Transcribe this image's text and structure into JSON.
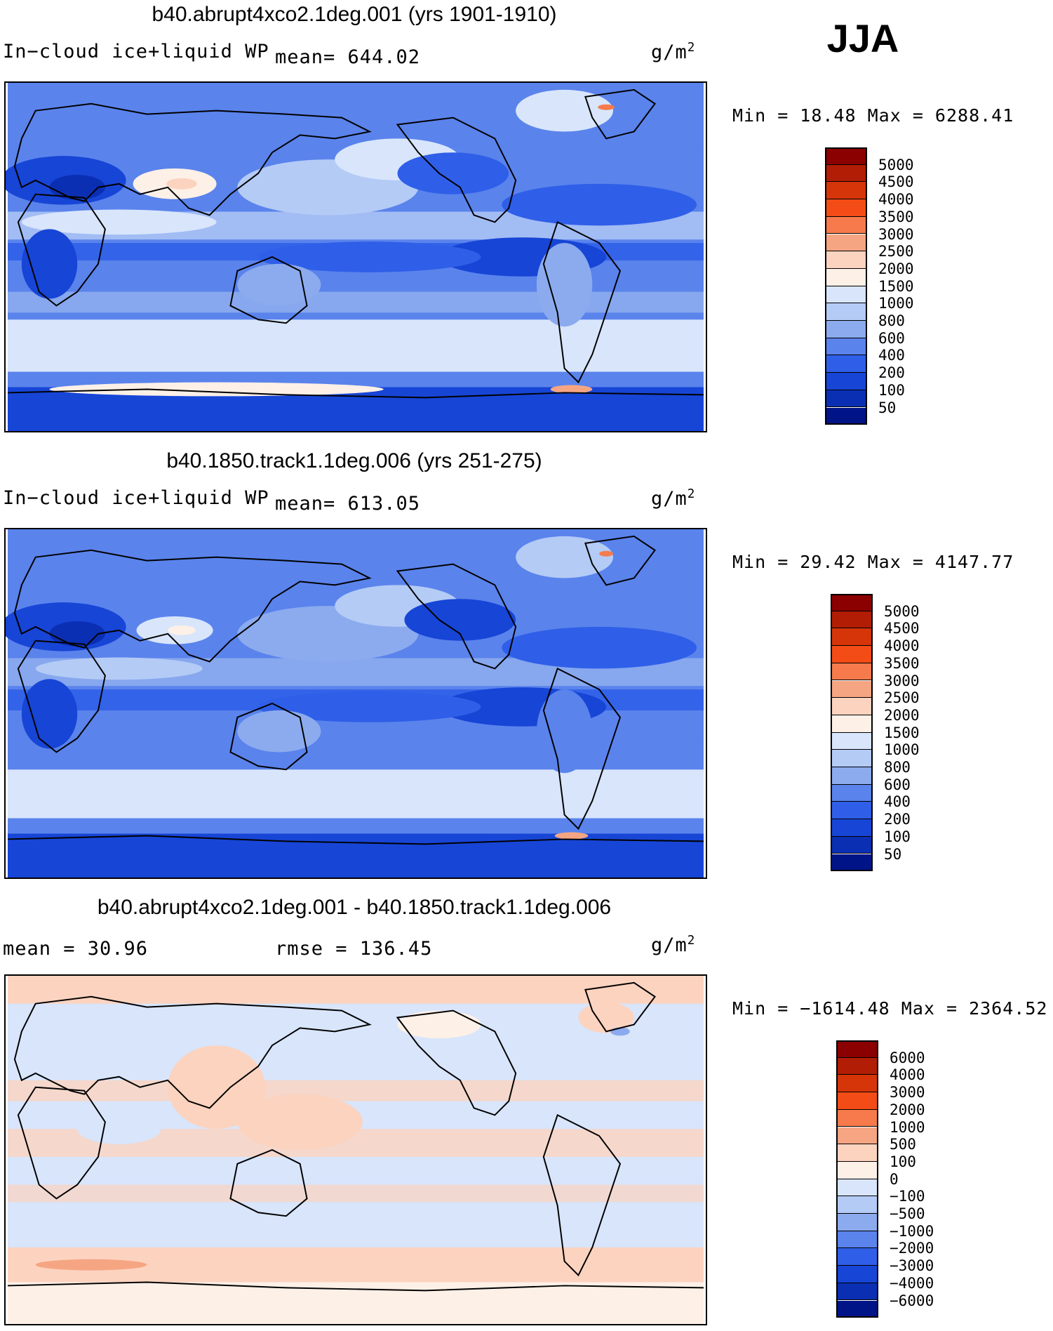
{
  "season": "JJA",
  "panels": [
    {
      "title": "b40.abrupt4xco2.1deg.001 (yrs 1901-1910)",
      "left_label": "In−cloud ice+liquid WP",
      "stat": "mean= 644.02",
      "units": "g/m",
      "units_exp": "2",
      "minmax": "Min =   18.48 Max = 6288.41",
      "colorbar": {
        "labels": [
          "5000",
          "4500",
          "4000",
          "3500",
          "3000",
          "2500",
          "2000",
          "1500",
          "1000",
          "800",
          "600",
          "400",
          "200",
          "100",
          "50"
        ],
        "colors": [
          "#8b0000",
          "#b21d05",
          "#d63509",
          "#f44c16",
          "#f67a4b",
          "#f6a583",
          "#fcd3bf",
          "#fdf0e7",
          "#d8e5fb",
          "#b4cbf6",
          "#8cabee",
          "#5a83ec",
          "#2f5fe8",
          "#1745d6",
          "#0b2fb3",
          "#001488"
        ]
      }
    },
    {
      "title": "b40.1850.track1.1deg.006 (yrs 251-275)",
      "left_label": "In−cloud ice+liquid WP",
      "stat": "mean= 613.05",
      "units": "g/m",
      "units_exp": "2",
      "minmax": "Min =   29.42 Max = 4147.77",
      "colorbar": {
        "labels": [
          "5000",
          "4500",
          "4000",
          "3500",
          "3000",
          "2500",
          "2000",
          "1500",
          "1000",
          "800",
          "600",
          "400",
          "200",
          "100",
          "50"
        ],
        "colors": [
          "#8b0000",
          "#b21d05",
          "#d63509",
          "#f44c16",
          "#f67a4b",
          "#f6a583",
          "#fcd3bf",
          "#fdf0e7",
          "#d8e5fb",
          "#b4cbf6",
          "#8cabee",
          "#5a83ec",
          "#2f5fe8",
          "#1745d6",
          "#0b2fb3",
          "#001488"
        ]
      }
    },
    {
      "title": "b40.abrupt4xco2.1deg.001 - b40.1850.track1.1deg.006",
      "left_label": "mean =   30.96",
      "stat": "rmse =  136.45",
      "units": "g/m",
      "units_exp": "2",
      "minmax": "Min = −1614.48 Max = 2364.52",
      "colorbar": {
        "labels": [
          "6000",
          "4000",
          "3000",
          "2000",
          "1000",
          "500",
          "100",
          "0",
          "−100",
          "−500",
          "−1000",
          "−2000",
          "−3000",
          "−4000",
          "−6000"
        ],
        "colors": [
          "#8b0000",
          "#b21d05",
          "#d63509",
          "#f44c16",
          "#f67a4b",
          "#f6a583",
          "#fcd3bf",
          "#fdf0e7",
          "#d8e5fb",
          "#b4cbf6",
          "#8cabee",
          "#5a83ec",
          "#2f5fe8",
          "#1745d6",
          "#0b2fb3",
          "#001488"
        ]
      }
    }
  ]
}
